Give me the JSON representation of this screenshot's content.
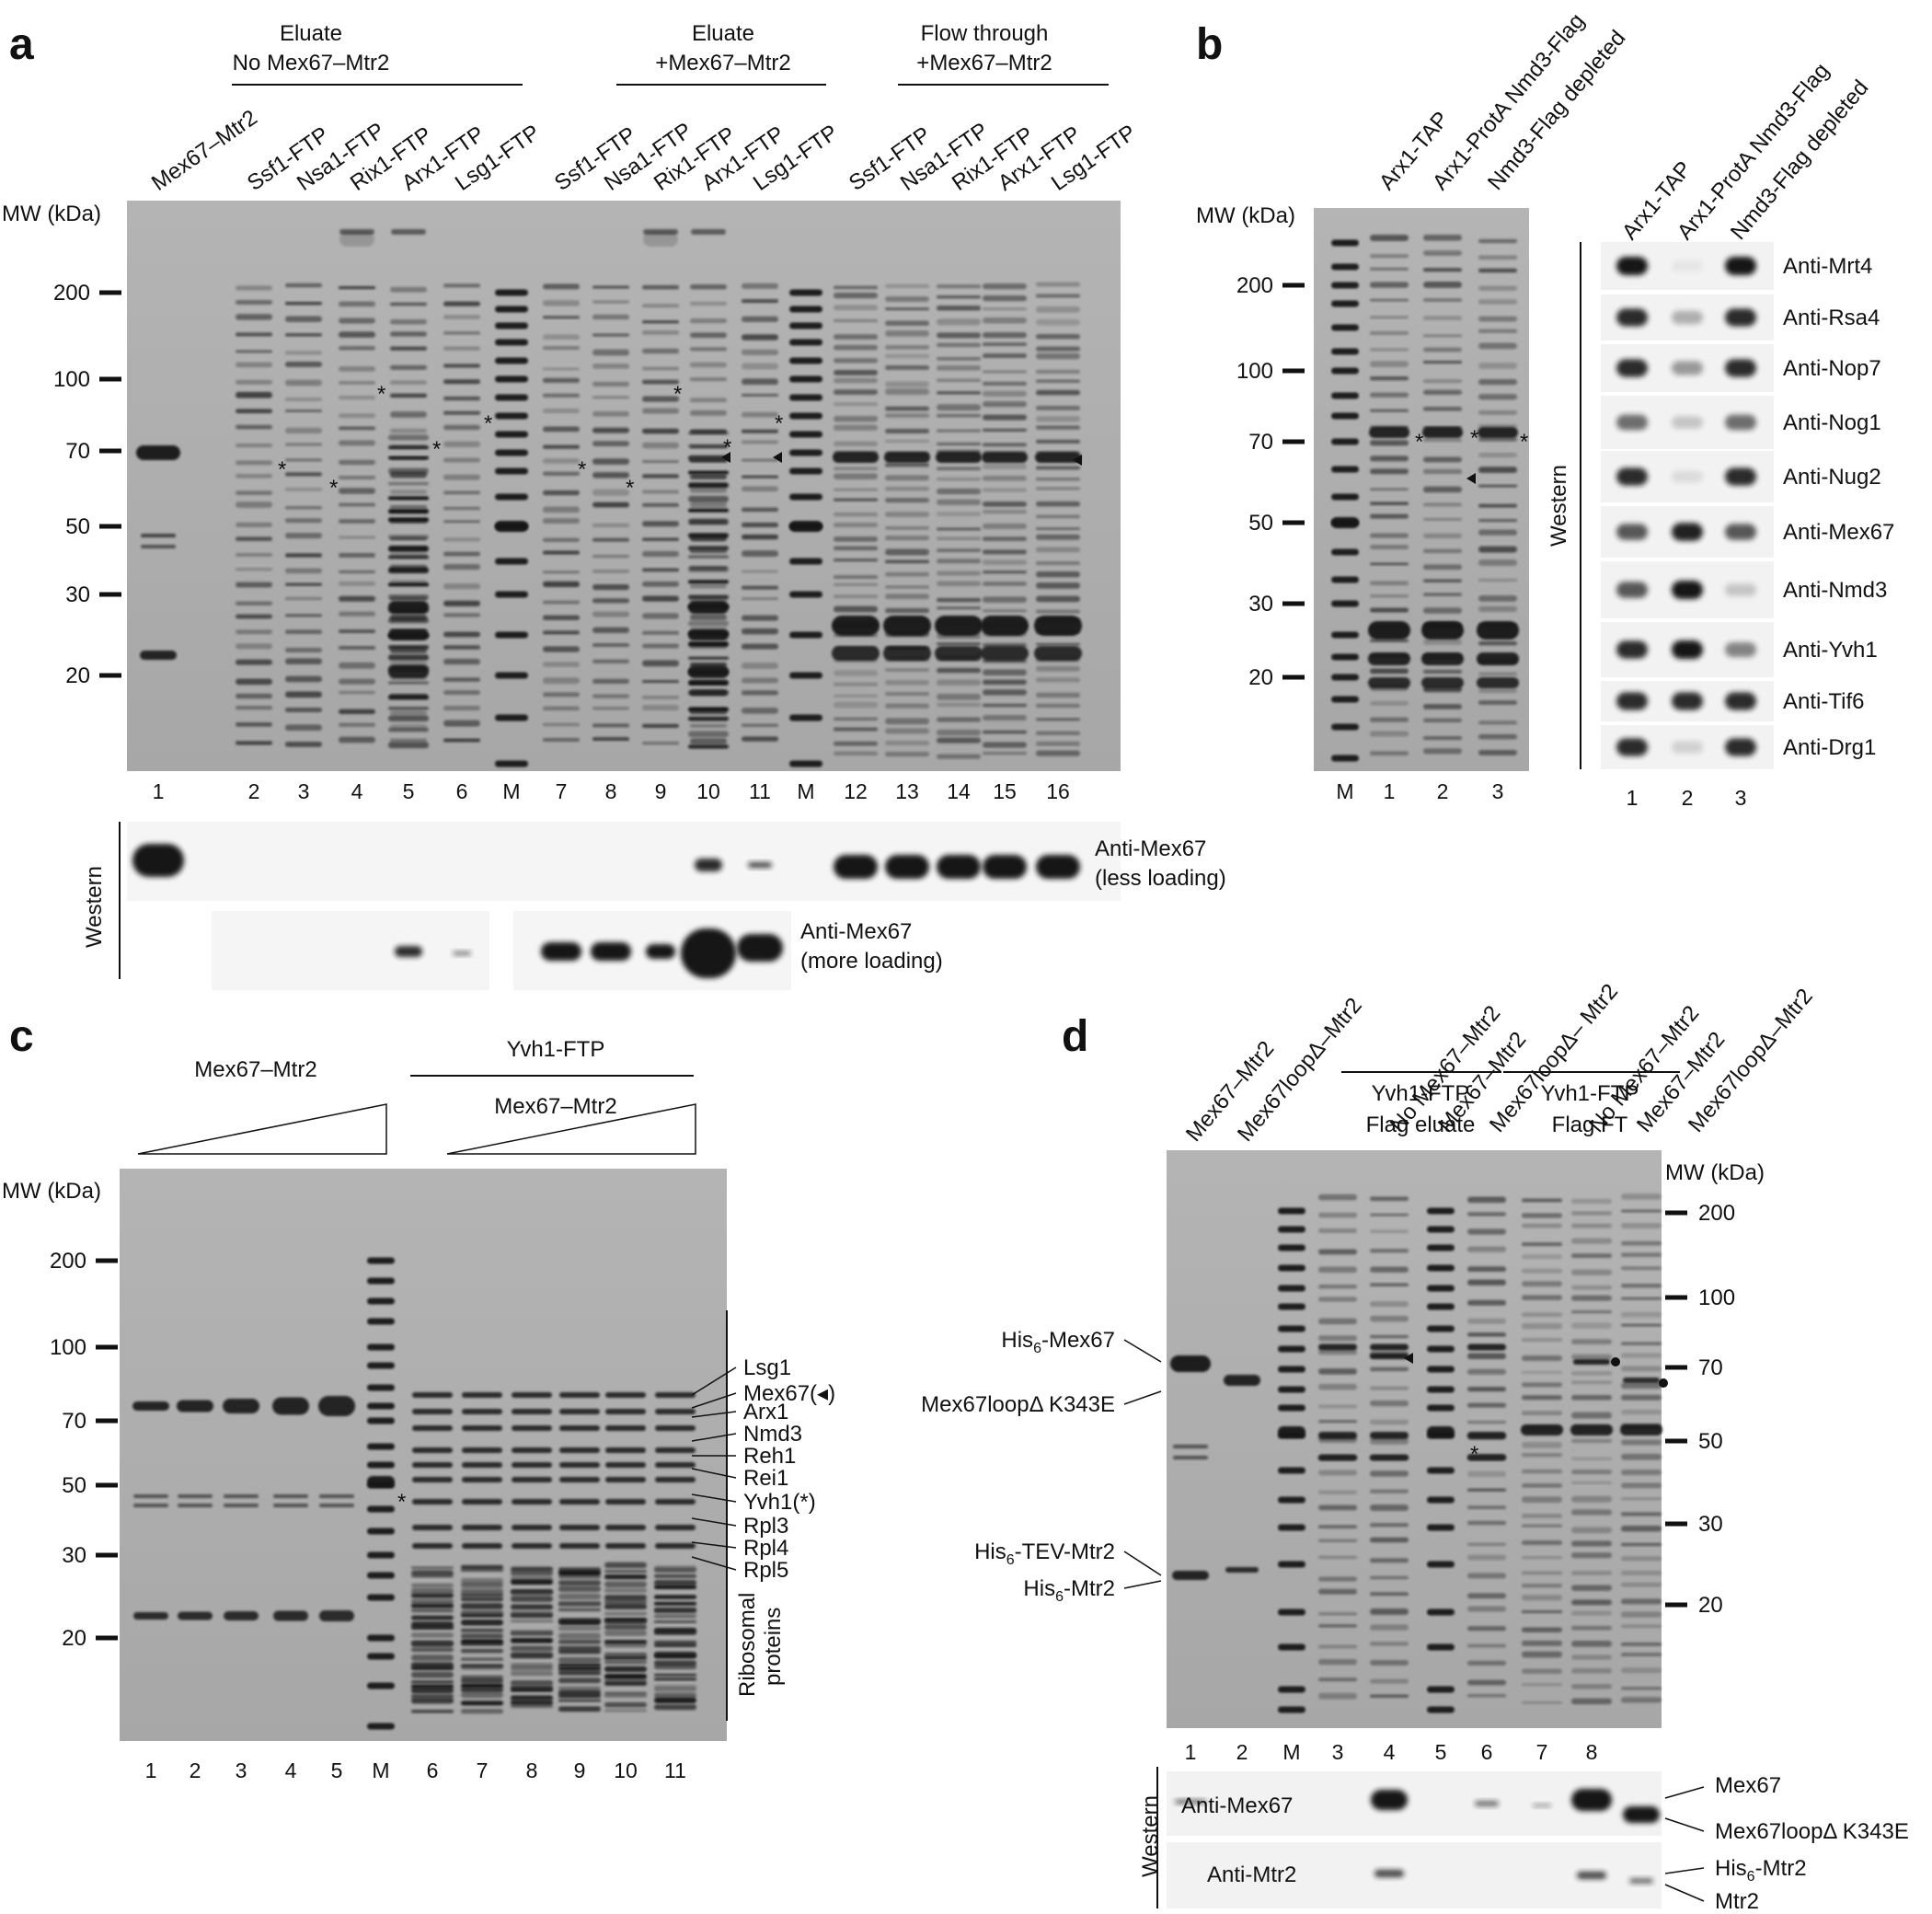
{
  "panels": {
    "a": {
      "letter": "a",
      "groups": [
        {
          "line1": "Eluate",
          "line2": "No Mex67–Mtr2"
        },
        {
          "line1": "Eluate",
          "line2": "+Mex67–Mtr2"
        },
        {
          "line1": "Flow through",
          "line2": "+Mex67–Mtr2"
        }
      ],
      "top_labels": [
        "Mex67–Mtr2",
        "Ssf1-FTP",
        "Nsa1-FTP",
        "Rix1-FTP",
        "Arx1-FTP",
        "Lsg1-FTP",
        "Ssf1-FTP",
        "Nsa1-FTP",
        "Rix1-FTP",
        "Arx1-FTP",
        "Lsg1-FTP",
        "Ssf1-FTP",
        "Nsa1-FTP",
        "Rix1-FTP",
        "Arx1-FTP",
        "Lsg1-FTP"
      ],
      "mw_title": "MW (kDa)",
      "mw_ticks": [
        "200",
        "100",
        "70",
        "50",
        "30",
        "20"
      ],
      "lane_numbers": [
        "1",
        "2",
        "3",
        "4",
        "5",
        "6",
        "M",
        "7",
        "8",
        "9",
        "10",
        "11",
        "M",
        "12",
        "13",
        "14",
        "15",
        "16"
      ],
      "western_label": "Western",
      "blot1_line1": "Anti-Mex67",
      "blot1_line2": "(less loading)",
      "blot2_line1": "Anti-Mex67",
      "blot2_line2": "(more loading)",
      "star": "*"
    },
    "b": {
      "letter": "b",
      "top_labels": [
        "Arx1-TAP",
        "Arx1-ProtA Nmd3-Flag",
        "Nmd3-Flag depleted"
      ],
      "mw_title": "MW (kDa)",
      "mw_ticks": [
        "200",
        "100",
        "70",
        "50",
        "30",
        "20"
      ],
      "lane_numbers": [
        "M",
        "1",
        "2",
        "3"
      ],
      "western_labels": [
        "Arx1-TAP",
        "Arx1-ProtA Nmd3-Flag",
        "Nmd3-Flag depleted"
      ],
      "antibodies": [
        "Anti-Mrt4",
        "Anti-Rsa4",
        "Anti-Nop7",
        "Anti-Nog1",
        "Anti-Nug2",
        "Anti-Mex67",
        "Anti-Nmd3",
        "Anti-Yvh1",
        "Anti-Tif6",
        "Anti-Drg1"
      ],
      "western_label": "Western",
      "western_lanes": [
        "1",
        "2",
        "3"
      ]
    },
    "c": {
      "letter": "c",
      "group_title": "Yvh1-FTP",
      "wedge1_label": "Mex67–Mtr2",
      "wedge2_label": "Mex67–Mtr2",
      "mw_title": "MW (kDa)",
      "mw_ticks": [
        "200",
        "100",
        "70",
        "50",
        "30",
        "20"
      ],
      "lane_numbers": [
        "1",
        "2",
        "3",
        "4",
        "5",
        "M",
        "6",
        "7",
        "8",
        "9",
        "10",
        "11"
      ],
      "band_labels": [
        "Lsg1",
        "Mex67(◂)",
        "Arx1",
        "Nmd3",
        "Reh1",
        "Rei1",
        "Yvh1(*)",
        "Rpl3",
        "Rpl4",
        "Rpl5"
      ],
      "ribo_line1": "Ribosomal",
      "ribo_line2": "proteins"
    },
    "d": {
      "letter": "d",
      "top_labels": [
        "Mex67–Mtr2",
        "Mex67loopΔ–Mtr2",
        "No Mex67–Mtr2",
        "Mex67–Mtr2",
        "Mex67loopΔ– Mtr2",
        "No Mex67–Mtr2",
        "Mex67–Mtr2",
        "Mex67loopΔ–Mtr2"
      ],
      "group1_line1": "Yvh1-FTP",
      "group1_line2": "Flag eluate",
      "group2_line1": "Yvh1-FTP",
      "group2_line2": "Flag FT",
      "mw_title": "MW (kDa)",
      "mw_ticks": [
        "200",
        "100",
        "70",
        "50",
        "30",
        "20"
      ],
      "left_labels": [
        {
          "main": "His",
          "sub": "6",
          "rest": "-Mex67"
        },
        {
          "main": "Mex67loopΔ K343E",
          "sub": "",
          "rest": ""
        },
        {
          "main": "His",
          "sub": "6",
          "rest": "-TEV-Mtr2"
        },
        {
          "main": "His",
          "sub": "6",
          "rest": "-Mtr2"
        }
      ],
      "lane_numbers": [
        "1",
        "2",
        "M",
        "3",
        "4",
        "5",
        "6",
        "7",
        "8"
      ],
      "western_label": "Western",
      "blot1_label": "Anti-Mex67",
      "blot2_label": "Anti-Mtr2",
      "blot1_right": [
        "Mex67",
        "Mex67loopΔ K343E"
      ],
      "blot2_right": [
        {
          "main": "His",
          "sub": "6",
          "rest": "-Mtr2"
        },
        {
          "main": "Mtr2",
          "sub": "",
          "rest": ""
        }
      ]
    }
  }
}
